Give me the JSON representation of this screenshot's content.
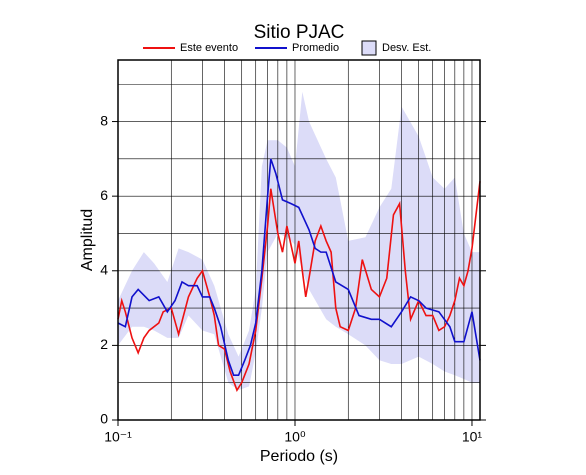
{
  "chart_data": {
    "type": "line",
    "title": "Sitio PJAC",
    "x_label": "Periodo (s)",
    "y_label": "Amplitud",
    "x_log": true,
    "grid": true,
    "xlim": [
      0.1,
      11.1
    ],
    "ylim": [
      0,
      9.65
    ],
    "xticks": [
      {
        "value": 0.1,
        "label": "10⁻¹"
      },
      {
        "value": 1,
        "label": "10⁰"
      },
      {
        "value": 10,
        "label": "10¹"
      }
    ],
    "x_minor_ticks": [
      0.2,
      0.3,
      0.4,
      0.5,
      0.6,
      0.7,
      0.8,
      0.9,
      2,
      3,
      4,
      5,
      6,
      7,
      8,
      9
    ],
    "yticks": [
      0,
      2,
      4,
      6,
      8
    ],
    "y_minor_ticks": [
      1,
      3,
      5,
      7,
      9
    ],
    "band": {
      "name": "Desv. Est.",
      "color": "#dcdcf8",
      "x": [
        0.1,
        0.12,
        0.14,
        0.16,
        0.19,
        0.22,
        0.25,
        0.3,
        0.35,
        0.42,
        0.48,
        0.55,
        0.6,
        0.65,
        0.7,
        0.8,
        0.9,
        1.0,
        1.1,
        1.2,
        1.5,
        1.7,
        2.0,
        2.5,
        3.0,
        3.5,
        4.0,
        5.0,
        6.0,
        7.0,
        8.0,
        9.0,
        10,
        11.1
      ],
      "upper": [
        3.2,
        4.0,
        4.5,
        4.2,
        3.7,
        4.6,
        4.5,
        4.3,
        3.6,
        2.3,
        1.7,
        2.4,
        3.5,
        6.8,
        7.5,
        7.5,
        7.3,
        6.8,
        8.8,
        8.0,
        7.0,
        6.5,
        4.8,
        4.9,
        5.7,
        6.2,
        8.4,
        7.6,
        6.5,
        6.2,
        6.5,
        5.0,
        4.5,
        4.5
      ],
      "lower": [
        2.0,
        2.5,
        2.5,
        2.4,
        2.2,
        2.2,
        2.8,
        2.4,
        2.3,
        1.0,
        0.8,
        0.9,
        1.8,
        3.0,
        4.5,
        5.0,
        4.9,
        4.7,
        4.0,
        3.5,
        2.7,
        2.5,
        2.3,
        2.0,
        1.6,
        1.5,
        1.5,
        1.7,
        1.5,
        1.3,
        1.2,
        1.1,
        1.0,
        1.0
      ]
    },
    "series": [
      {
        "name": "Este evento",
        "color": "#ee1111",
        "x": [
          0.1,
          0.105,
          0.11,
          0.12,
          0.13,
          0.14,
          0.15,
          0.17,
          0.18,
          0.2,
          0.22,
          0.25,
          0.28,
          0.3,
          0.33,
          0.35,
          0.37,
          0.4,
          0.43,
          0.47,
          0.5,
          0.55,
          0.6,
          0.65,
          0.7,
          0.73,
          0.8,
          0.85,
          0.9,
          1.0,
          1.05,
          1.1,
          1.15,
          1.2,
          1.3,
          1.4,
          1.5,
          1.6,
          1.7,
          1.8,
          2.0,
          2.2,
          2.4,
          2.7,
          3.0,
          3.3,
          3.6,
          3.9,
          4.2,
          4.5,
          5,
          5.5,
          6,
          6.5,
          7,
          7.5,
          8,
          8.5,
          9,
          9.5,
          10,
          11.1
        ],
        "values": [
          2.7,
          3.2,
          2.9,
          2.2,
          1.8,
          2.2,
          2.4,
          2.6,
          2.9,
          3.0,
          2.3,
          3.3,
          3.8,
          4.0,
          3.3,
          2.8,
          2.0,
          1.9,
          1.3,
          0.8,
          1.0,
          1.5,
          2.4,
          3.8,
          5.2,
          6.2,
          5.0,
          4.5,
          5.2,
          4.2,
          4.8,
          4.0,
          3.3,
          3.8,
          4.8,
          5.2,
          4.8,
          4.5,
          3.0,
          2.5,
          2.4,
          3.0,
          4.3,
          3.5,
          3.3,
          3.8,
          5.5,
          5.8,
          4.0,
          2.7,
          3.2,
          2.8,
          2.8,
          2.4,
          2.5,
          2.8,
          3.2,
          3.8,
          3.6,
          4.0,
          4.6,
          6.4
        ]
      },
      {
        "name": "Promedio",
        "color": "#1111cc",
        "x": [
          0.1,
          0.11,
          0.12,
          0.13,
          0.15,
          0.17,
          0.19,
          0.21,
          0.23,
          0.25,
          0.28,
          0.3,
          0.33,
          0.35,
          0.38,
          0.42,
          0.45,
          0.48,
          0.52,
          0.56,
          0.6,
          0.65,
          0.7,
          0.73,
          0.78,
          0.85,
          0.95,
          1.05,
          1.2,
          1.3,
          1.4,
          1.5,
          1.7,
          2.0,
          2.3,
          2.7,
          3.0,
          3.5,
          4.0,
          4.5,
          5,
          5.5,
          6.5,
          7.5,
          8,
          9,
          10,
          11.1
        ],
        "values": [
          2.6,
          2.5,
          3.3,
          3.5,
          3.2,
          3.3,
          2.9,
          3.2,
          3.7,
          3.6,
          3.6,
          3.3,
          3.3,
          3.0,
          2.5,
          1.6,
          1.2,
          1.2,
          1.6,
          2.0,
          2.6,
          4.0,
          6.0,
          7.0,
          6.6,
          5.9,
          5.8,
          5.7,
          5.1,
          4.6,
          4.5,
          4.5,
          3.7,
          3.5,
          2.8,
          2.7,
          2.7,
          2.5,
          2.9,
          3.3,
          3.2,
          3.0,
          2.9,
          2.5,
          2.1,
          2.1,
          2.9,
          1.6
        ]
      }
    ]
  }
}
